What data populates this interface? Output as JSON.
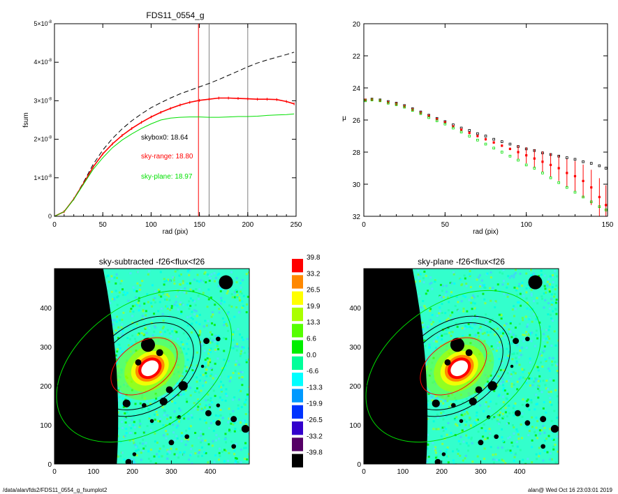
{
  "footer": {
    "left": "/data/alan/fds2/FDS11_0554_g_fsumplot2",
    "right": "alan@  Wed Oct 16 23:03:01 2019"
  },
  "colors": {
    "red": "#ff0000",
    "green": "#00e000",
    "black": "#000000"
  },
  "chart_data": [
    {
      "type": "line",
      "title": "FDS11_0554_g",
      "xlabel": "rad (pix)",
      "ylabel": "fsum",
      "xlim": [
        0,
        250
      ],
      "ylim": [
        0,
        5e-08
      ],
      "x_ticks": [
        "0",
        "50",
        "100",
        "150",
        "200",
        "250"
      ],
      "y_ticks": [
        {
          "mant": "0",
          "exp": ""
        },
        {
          "mant": "1×10",
          "exp": "-8"
        },
        {
          "mant": "2×10",
          "exp": "-8"
        },
        {
          "mant": "3×10",
          "exp": "-8"
        },
        {
          "mant": "4×10",
          "exp": "-8"
        },
        {
          "mant": "5×10",
          "exp": "-8"
        }
      ],
      "vlines": [
        {
          "x": 149,
          "color": "#ff0000"
        },
        {
          "x": 160,
          "color": "#808080"
        },
        {
          "x": 200,
          "color": "#808080"
        }
      ],
      "annotations": [
        {
          "text": "skybox0: 18.64",
          "color": "#000000"
        },
        {
          "text": "sky-range: 18.80",
          "color": "#ff0000"
        },
        {
          "text": "sky-plane: 18.97",
          "color": "#00e000"
        }
      ],
      "series": [
        {
          "style": "dashed",
          "color": "#000000",
          "x": [
            0,
            10,
            20,
            30,
            40,
            50,
            60,
            70,
            80,
            90,
            100,
            110,
            120,
            130,
            140,
            150,
            160,
            170,
            180,
            190,
            200,
            210,
            220,
            230,
            240,
            248
          ],
          "y": [
            0,
            1.2e-09,
            4.5e-09,
            8.8e-09,
            1.35e-08,
            1.72e-08,
            2.02e-08,
            2.27e-08,
            2.48e-08,
            2.66e-08,
            2.82e-08,
            2.95e-08,
            3.07e-08,
            3.18e-08,
            3.27e-08,
            3.36e-08,
            3.45e-08,
            3.55e-08,
            3.66e-08,
            3.77e-08,
            3.88e-08,
            3.98e-08,
            4.06e-08,
            4.13e-08,
            4.2e-08,
            4.26e-08
          ]
        },
        {
          "style": "crosses",
          "color": "#ff0000",
          "x": [
            0,
            10,
            20,
            30,
            40,
            50,
            60,
            70,
            80,
            90,
            100,
            110,
            120,
            130,
            140,
            150,
            160,
            170,
            180,
            190,
            200,
            210,
            220,
            230,
            240,
            248
          ],
          "y": [
            0,
            1.2e-09,
            4.5e-09,
            8.5e-09,
            1.28e-08,
            1.62e-08,
            1.88e-08,
            2.1e-08,
            2.28e-08,
            2.44e-08,
            2.58e-08,
            2.7e-08,
            2.8e-08,
            2.89e-08,
            2.96e-08,
            3.01e-08,
            3.04e-08,
            3.07e-08,
            3.07e-08,
            3.06e-08,
            3.05e-08,
            3.04e-08,
            3.04e-08,
            3.03e-08,
            2.98e-08,
            2.92e-08
          ]
        },
        {
          "style": "solid",
          "color": "#00e000",
          "x": [
            0,
            10,
            20,
            30,
            40,
            50,
            60,
            70,
            80,
            90,
            100,
            110,
            120,
            130,
            140,
            150,
            160,
            170,
            180,
            190,
            200,
            210,
            220,
            230,
            240,
            248
          ],
          "y": [
            0,
            1.2e-09,
            4.4e-09,
            8.3e-09,
            1.22e-08,
            1.52e-08,
            1.78e-08,
            1.98e-08,
            2.14e-08,
            2.28e-08,
            2.4e-08,
            2.5e-08,
            2.55e-08,
            2.57e-08,
            2.58e-08,
            2.58e-08,
            2.57e-08,
            2.57e-08,
            2.58e-08,
            2.59e-08,
            2.59e-08,
            2.6e-08,
            2.62e-08,
            2.63e-08,
            2.64e-08,
            2.66e-08
          ]
        }
      ]
    },
    {
      "type": "scatter",
      "title": "",
      "xlabel": "rad (pix)",
      "ylabel": "μ",
      "xlim": [
        0,
        150
      ],
      "ylim": [
        32,
        20
      ],
      "x_ticks": [
        "0",
        "50",
        "100",
        "150"
      ],
      "y_ticks": [
        "20",
        "22",
        "24",
        "26",
        "28",
        "30",
        "32"
      ],
      "series": [
        {
          "marker": "square",
          "color": "#000000",
          "x": [
            1,
            5,
            10,
            15,
            20,
            25,
            30,
            35,
            40,
            45,
            50,
            55,
            60,
            65,
            70,
            75,
            80,
            85,
            90,
            95,
            100,
            105,
            110,
            115,
            120,
            125,
            130,
            135,
            140,
            145,
            149
          ],
          "y": [
            24.75,
            24.7,
            24.75,
            24.85,
            24.95,
            25.1,
            25.3,
            25.5,
            25.7,
            25.9,
            26.1,
            26.3,
            26.5,
            26.65,
            26.85,
            27.0,
            27.2,
            27.35,
            27.5,
            27.65,
            27.8,
            27.9,
            28.05,
            28.15,
            28.25,
            28.35,
            28.45,
            28.6,
            28.7,
            28.85,
            29.0
          ]
        },
        {
          "marker": "cross-errorbar",
          "color": "#ff0000",
          "x": [
            1,
            5,
            10,
            15,
            20,
            25,
            30,
            35,
            40,
            45,
            50,
            55,
            60,
            65,
            70,
            75,
            80,
            85,
            90,
            95,
            100,
            105,
            110,
            115,
            120,
            125,
            130,
            135,
            140,
            145,
            149
          ],
          "y": [
            24.75,
            24.72,
            24.78,
            24.9,
            25.0,
            25.15,
            25.35,
            25.55,
            25.75,
            25.95,
            26.15,
            26.4,
            26.6,
            26.8,
            27.0,
            27.2,
            27.4,
            27.6,
            27.8,
            28.0,
            28.2,
            28.4,
            28.6,
            28.8,
            29.0,
            29.3,
            29.5,
            29.8,
            30.2,
            30.8,
            31.3
          ]
        },
        {
          "marker": "square",
          "color": "#00e000",
          "x": [
            1,
            5,
            10,
            15,
            20,
            25,
            30,
            35,
            40,
            45,
            50,
            55,
            60,
            65,
            70,
            75,
            80,
            85,
            90,
            95,
            100,
            105,
            110,
            115,
            120,
            125,
            130,
            135,
            140,
            145,
            149
          ],
          "y": [
            24.8,
            24.75,
            24.8,
            24.95,
            25.05,
            25.2,
            25.4,
            25.6,
            25.85,
            26.05,
            26.25,
            26.5,
            26.75,
            27.0,
            27.25,
            27.5,
            27.75,
            28.0,
            28.25,
            28.5,
            28.8,
            29.0,
            29.3,
            29.6,
            29.9,
            30.2,
            30.5,
            30.8,
            31.1,
            31.4,
            31.6
          ]
        }
      ]
    },
    {
      "type": "heatmap",
      "title": "sky-subtracted -f26<flux<f26",
      "xlim": [
        0,
        500
      ],
      "ylim": [
        0,
        500
      ],
      "x_ticks": [
        "0",
        "100",
        "200",
        "300",
        "400"
      ],
      "y_ticks": [
        "0",
        "100",
        "200",
        "300",
        "400"
      ]
    },
    {
      "type": "heatmap",
      "title": "sky-plane -f26<flux<f26",
      "xlim": [
        0,
        500
      ],
      "ylim": [
        0,
        500
      ],
      "x_ticks": [
        "0",
        "100",
        "200",
        "300",
        "400"
      ],
      "y_ticks": [
        "0",
        "100",
        "200",
        "300",
        "400"
      ]
    }
  ],
  "colorbar": {
    "labels": [
      "39.8",
      "33.2",
      "26.5",
      "19.9",
      "13.3",
      "6.6",
      "0.0",
      "-6.6",
      "-13.3",
      "-19.9",
      "-26.5",
      "-33.2",
      "-39.8"
    ],
    "colors": [
      "#ff0000",
      "#ff8800",
      "#ffff00",
      "#aaff00",
      "#55ff00",
      "#00ee00",
      "#00ff99",
      "#00ffff",
      "#0099ff",
      "#0033ff",
      "#3300cc",
      "#550066",
      "#000000"
    ]
  }
}
